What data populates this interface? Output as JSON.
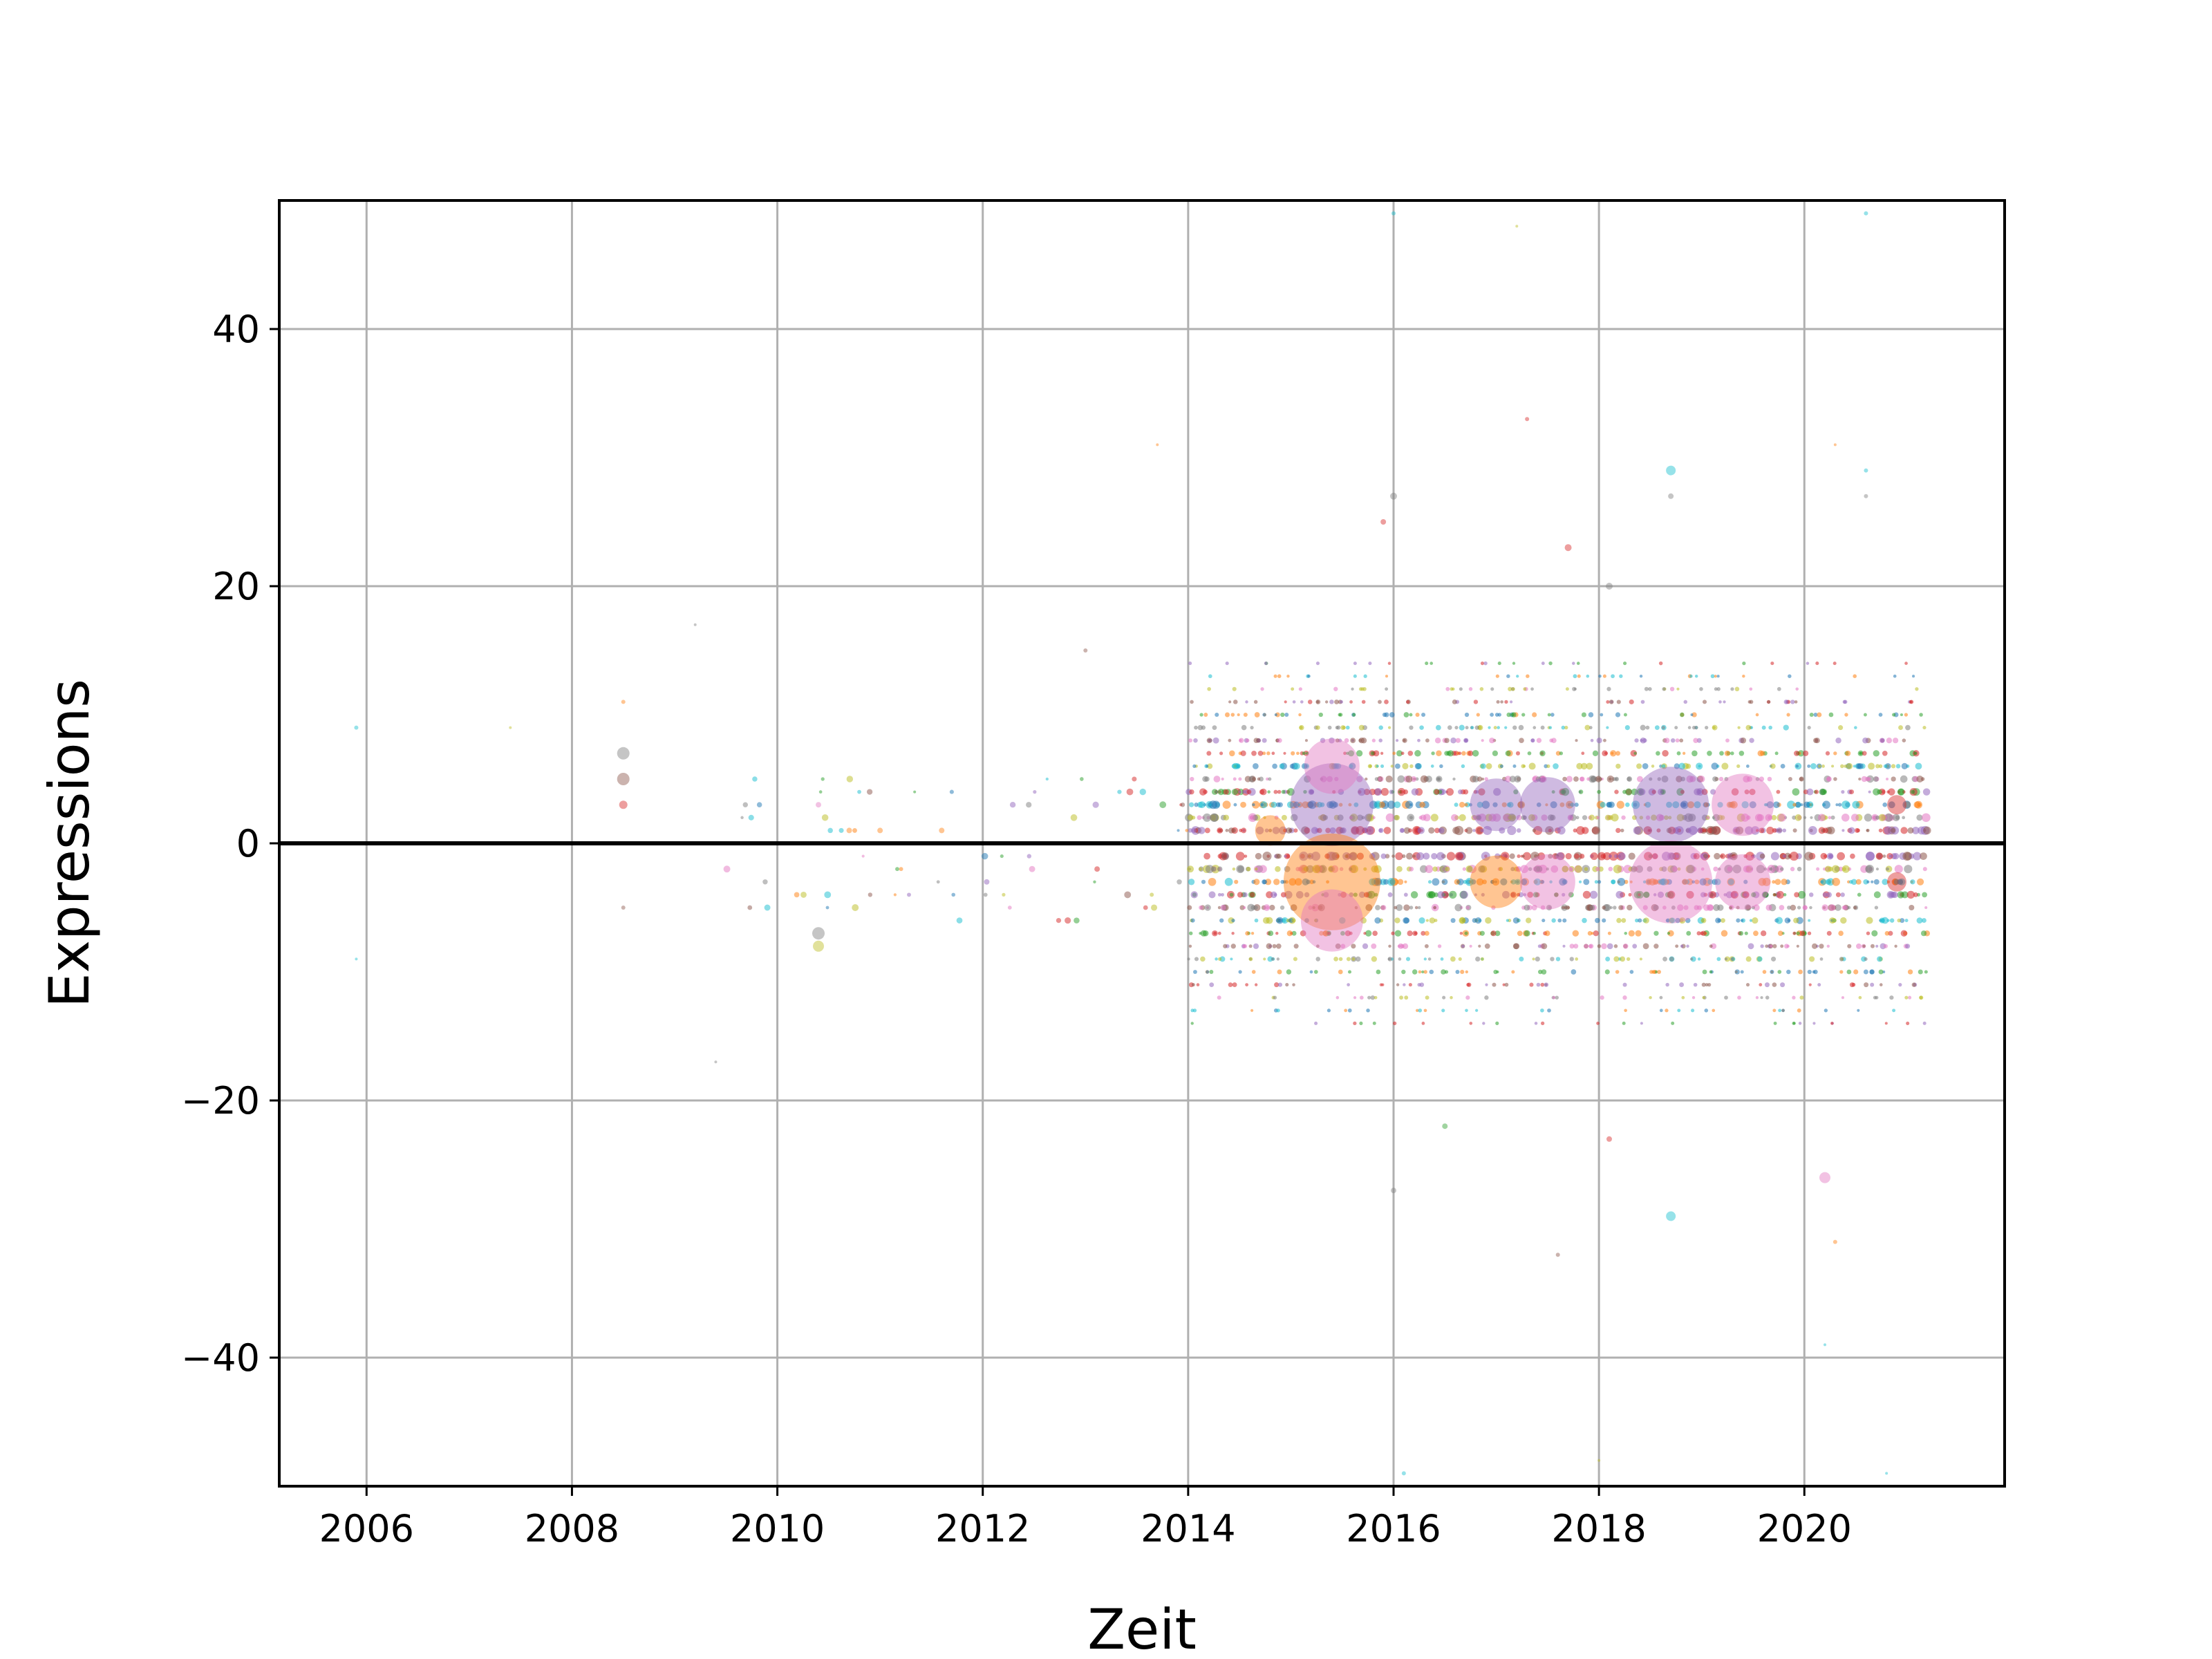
{
  "chart_data": {
    "type": "scatter",
    "title": "",
    "xlabel": "Zeit",
    "ylabel": "Expressions",
    "xlim": [
      2005.15,
      2021.95
    ],
    "ylim": [
      -50,
      50
    ],
    "xticks": [
      "2006",
      "2008",
      "2010",
      "2012",
      "2014",
      "2016",
      "2018",
      "2020"
    ],
    "yticks": [
      "40",
      "20",
      "0",
      "−20",
      "−40"
    ],
    "grid": true,
    "zero_line": true,
    "colors": [
      "#1f77b4",
      "#ff7f0e",
      "#2ca02c",
      "#d62728",
      "#9467bd",
      "#8c564b",
      "#e377c2",
      "#7f7f7f",
      "#bcbd22",
      "#17becf"
    ],
    "dense_region": {
      "x_range": [
        2014.0,
        2021.2
      ],
      "y_range": [
        -14,
        14
      ],
      "note_values": "many small markers at integer expression levels"
    },
    "points": [
      {
        "x": 2005.9,
        "y": 9,
        "size": 3,
        "color": "#17becf"
      },
      {
        "x": 2005.9,
        "y": -9,
        "size": 2,
        "color": "#17becf"
      },
      {
        "x": 2007.4,
        "y": 9,
        "size": 2,
        "color": "#bcbd22"
      },
      {
        "x": 2008.5,
        "y": 7,
        "size": 9,
        "color": "#7f7f7f"
      },
      {
        "x": 2008.5,
        "y": 5,
        "size": 9,
        "color": "#8c564b"
      },
      {
        "x": 2008.5,
        "y": 3,
        "size": 6,
        "color": "#d62728"
      },
      {
        "x": 2008.5,
        "y": 11,
        "size": 3,
        "color": "#ff7f0e"
      },
      {
        "x": 2008.5,
        "y": -5,
        "size": 3,
        "color": "#8c564b"
      },
      {
        "x": 2009.2,
        "y": 17,
        "size": 2,
        "color": "#7f7f7f"
      },
      {
        "x": 2009.4,
        "y": -17,
        "size": 2,
        "color": "#7f7f7f"
      },
      {
        "x": 2010.4,
        "y": -7,
        "size": 9,
        "color": "#7f7f7f"
      },
      {
        "x": 2010.4,
        "y": -8,
        "size": 8,
        "color": "#bcbd22"
      },
      {
        "x": 2010.4,
        "y": 3,
        "size": 4,
        "color": "#e377c2"
      },
      {
        "x": 2010.7,
        "y": 1,
        "size": 4,
        "color": "#ff7f0e"
      },
      {
        "x": 2011.0,
        "y": 1,
        "size": 4,
        "color": "#ff7f0e"
      },
      {
        "x": 2011.6,
        "y": 1,
        "size": 4,
        "color": "#ff7f0e"
      },
      {
        "x": 2013.0,
        "y": 15,
        "size": 3,
        "color": "#8c564b"
      },
      {
        "x": 2013.7,
        "y": 31,
        "size": 2,
        "color": "#ff7f0e"
      },
      {
        "x": 2015.4,
        "y": 3,
        "size": 60,
        "color": "#9467bd"
      },
      {
        "x": 2015.4,
        "y": -3,
        "size": 70,
        "color": "#ff7f0e"
      },
      {
        "x": 2015.4,
        "y": 6,
        "size": 40,
        "color": "#e377c2"
      },
      {
        "x": 2015.4,
        "y": -6,
        "size": 45,
        "color": "#e377c2"
      },
      {
        "x": 2014.8,
        "y": 1,
        "size": 22,
        "color": "#ff7f0e"
      },
      {
        "x": 2017.0,
        "y": 3,
        "size": 38,
        "color": "#9467bd"
      },
      {
        "x": 2017.0,
        "y": -3,
        "size": 38,
        "color": "#ff7f0e"
      },
      {
        "x": 2017.5,
        "y": 3,
        "size": 40,
        "color": "#9467bd"
      },
      {
        "x": 2017.5,
        "y": -3,
        "size": 40,
        "color": "#e377c2"
      },
      {
        "x": 2018.7,
        "y": 3,
        "size": 55,
        "color": "#9467bd"
      },
      {
        "x": 2018.7,
        "y": -3,
        "size": 60,
        "color": "#e377c2"
      },
      {
        "x": 2019.4,
        "y": 3,
        "size": 45,
        "color": "#e377c2"
      },
      {
        "x": 2019.4,
        "y": -3,
        "size": 40,
        "color": "#e377c2"
      },
      {
        "x": 2020.9,
        "y": 3,
        "size": 14,
        "color": "#d62728"
      },
      {
        "x": 2020.9,
        "y": -3,
        "size": 14,
        "color": "#d62728"
      },
      {
        "x": 2016.0,
        "y": 49,
        "size": 3,
        "color": "#17becf"
      },
      {
        "x": 2017.2,
        "y": 48,
        "size": 2,
        "color": "#bcbd22"
      },
      {
        "x": 2020.6,
        "y": 49,
        "size": 3,
        "color": "#17becf"
      },
      {
        "x": 2016.0,
        "y": 27,
        "size": 5,
        "color": "#7f7f7f"
      },
      {
        "x": 2015.9,
        "y": 25,
        "size": 4,
        "color": "#d62728"
      },
      {
        "x": 2017.3,
        "y": 33,
        "size": 3,
        "color": "#d62728"
      },
      {
        "x": 2018.7,
        "y": 29,
        "size": 7,
        "color": "#17becf"
      },
      {
        "x": 2018.7,
        "y": 27,
        "size": 4,
        "color": "#7f7f7f"
      },
      {
        "x": 2020.6,
        "y": 29,
        "size": 3,
        "color": "#17becf"
      },
      {
        "x": 2020.6,
        "y": 27,
        "size": 3,
        "color": "#7f7f7f"
      },
      {
        "x": 2020.3,
        "y": 31,
        "size": 2,
        "color": "#ff7f0e"
      },
      {
        "x": 2017.7,
        "y": 23,
        "size": 5,
        "color": "#d62728"
      },
      {
        "x": 2018.1,
        "y": 20,
        "size": 5,
        "color": "#7f7f7f"
      },
      {
        "x": 2018.7,
        "y": -29,
        "size": 7,
        "color": "#17becf"
      },
      {
        "x": 2016.0,
        "y": -27,
        "size": 4,
        "color": "#7f7f7f"
      },
      {
        "x": 2016.5,
        "y": -22,
        "size": 4,
        "color": "#2ca02c"
      },
      {
        "x": 2017.6,
        "y": -32,
        "size": 3,
        "color": "#8c564b"
      },
      {
        "x": 2018.1,
        "y": -23,
        "size": 4,
        "color": "#d62728"
      },
      {
        "x": 2020.2,
        "y": -26,
        "size": 8,
        "color": "#e377c2"
      },
      {
        "x": 2020.3,
        "y": -31,
        "size": 3,
        "color": "#ff7f0e"
      },
      {
        "x": 2020.2,
        "y": -39,
        "size": 2,
        "color": "#17becf"
      },
      {
        "x": 2018.0,
        "y": -48,
        "size": 2,
        "color": "#bcbd22"
      },
      {
        "x": 2016.1,
        "y": -49,
        "size": 3,
        "color": "#17becf"
      },
      {
        "x": 2020.8,
        "y": -49,
        "size": 2,
        "color": "#17becf"
      }
    ]
  }
}
